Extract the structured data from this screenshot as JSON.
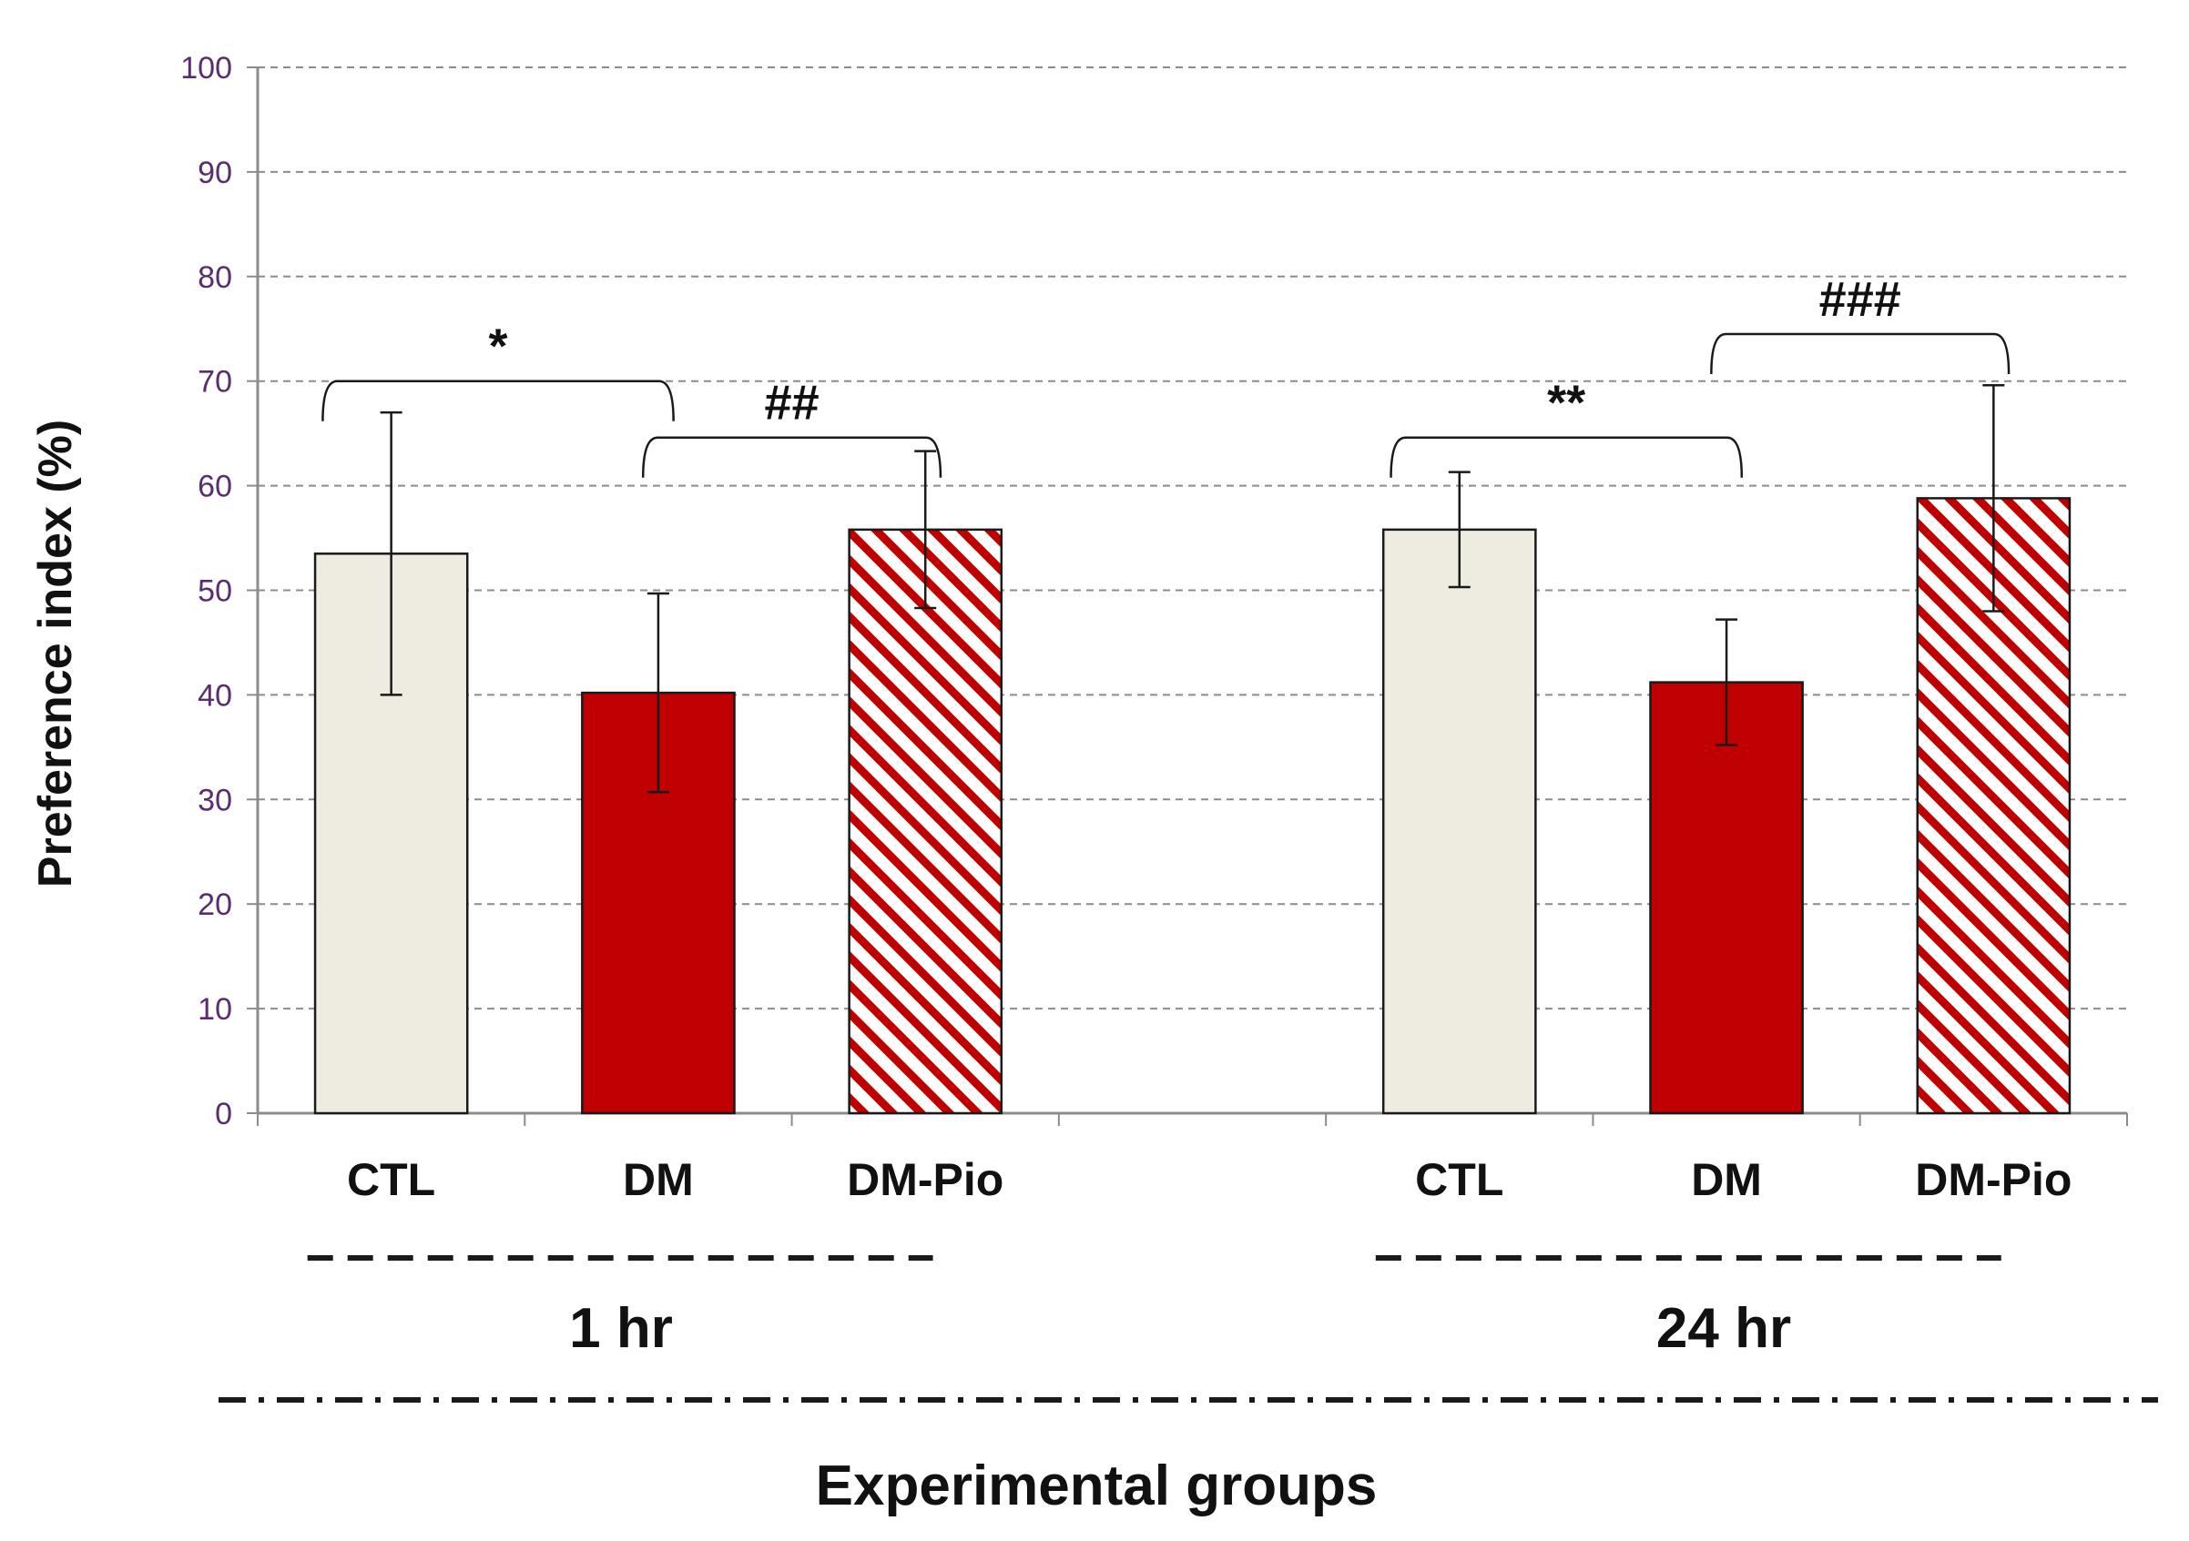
{
  "chart_data": {
    "type": "bar",
    "ylabel": "Preference index  (%)",
    "xlabel": "Experimental groups",
    "ylim": [
      0,
      100
    ],
    "yticks": [
      0,
      10,
      20,
      30,
      40,
      50,
      60,
      70,
      80,
      90,
      100
    ],
    "grid": true,
    "groups": [
      {
        "name": "1 hr",
        "bars": [
          {
            "category": "CTL",
            "value": 53.5,
            "error": 13.5,
            "fill": "#eeece1"
          },
          {
            "category": "DM",
            "value": 40.2,
            "error": 9.5,
            "fill": "#c00000"
          },
          {
            "category": "DM-Pio",
            "value": 55.8,
            "error": 7.5,
            "fill": "hatch-red"
          }
        ],
        "comparisons": [
          {
            "from": 0,
            "to": 1,
            "label": "*"
          },
          {
            "from": 1,
            "to": 2,
            "label": "##"
          }
        ]
      },
      {
        "name": "24 hr",
        "bars": [
          {
            "category": "CTL",
            "value": 55.8,
            "error": 5.5,
            "fill": "#eeece1"
          },
          {
            "category": "DM",
            "value": 41.2,
            "error": 6.0,
            "fill": "#c00000"
          },
          {
            "category": "DM-Pio",
            "value": 58.8,
            "error": 10.8,
            "fill": "hatch-red"
          }
        ],
        "comparisons": [
          {
            "from": 0,
            "to": 1,
            "label": "**"
          },
          {
            "from": 1,
            "to": 2,
            "label": "###"
          }
        ]
      }
    ]
  }
}
